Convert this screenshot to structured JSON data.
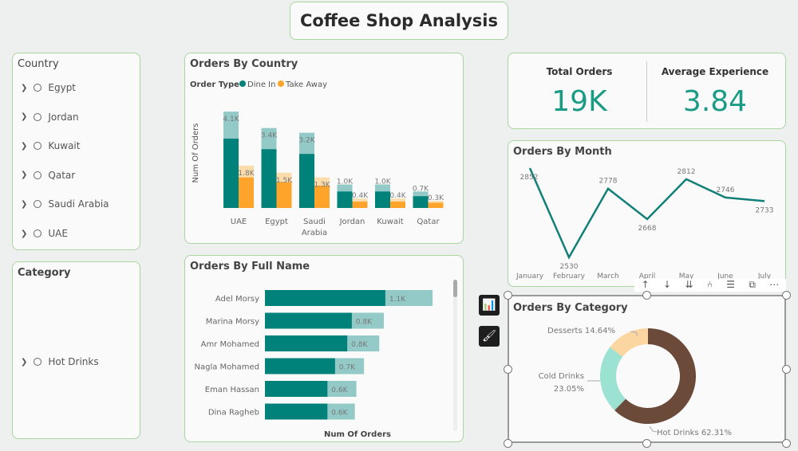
{
  "title": "Coffee Shop Analysis",
  "country_slicer": {
    "title": "Country",
    "items": [
      "Egypt",
      "Jordan",
      "Kuwait",
      "Qatar",
      "Saudi Arabia",
      "UAE"
    ]
  },
  "category_slicer": {
    "title": "Category",
    "items": [
      "Hot Drinks"
    ]
  },
  "kpis": [
    {
      "label": "Total Orders",
      "value": "19K"
    },
    {
      "label": "Average Experience",
      "value": "3.84"
    }
  ],
  "colors": {
    "teal": "#00827a",
    "teal_light": "#93c9c6",
    "orange": "#ffa42a",
    "orange_light": "#fcdcaa",
    "line": "#127f78",
    "hot": "#6b4a3a",
    "cold": "#9ce2d2",
    "desserts": "#fbd6a0",
    "kpi": "#1a9b84"
  },
  "chart_data": [
    {
      "type": "bar",
      "title": "Orders By Country",
      "legend_title": "Order Type",
      "legend_position": "top-left",
      "ylabel": "Num Of Orders",
      "categories": [
        "UAE",
        "Egypt",
        "Saudi Arabia",
        "Jordan",
        "Kuwait",
        "Qatar"
      ],
      "series": [
        {
          "name": "Dine In",
          "values": [
            4.1,
            3.4,
            3.2,
            1.0,
            1.0,
            0.7
          ],
          "highlighted": [
            2.95,
            2.5,
            2.3,
            0.7,
            0.7,
            0.5
          ],
          "labels": [
            "4.1K",
            "3.4K",
            "3.2K",
            "1.0K",
            "1.0K",
            "0.7K"
          ]
        },
        {
          "name": "Take Away",
          "values": [
            1.8,
            1.5,
            1.3,
            0.4,
            0.4,
            0.3
          ],
          "highlighted": [
            1.3,
            1.1,
            0.95,
            0.27,
            0.27,
            0.22
          ],
          "labels": [
            "1.8K",
            "1.5K",
            "1.3K",
            "0.4K",
            "0.4K",
            "0.3K"
          ]
        }
      ]
    },
    {
      "type": "bar",
      "orientation": "horizontal",
      "title": "Orders By Full Name",
      "xlabel": "Num Of Orders",
      "categories": [
        "Adel Morsy",
        "Marina Morsy",
        "Amr Mohamed",
        "Nagla Mohamed",
        "Eman Hassan",
        "Dina Ragheb"
      ],
      "values": [
        1.1,
        0.78,
        0.75,
        0.65,
        0.6,
        0.59
      ],
      "highlighted": [
        0.79,
        0.57,
        0.54,
        0.46,
        0.41,
        0.41
      ],
      "labels": [
        "1.1K",
        "0.8K",
        "0.8K",
        "0.7K",
        "0.6K",
        "0.6K"
      ]
    },
    {
      "type": "line",
      "title": "Orders By Month",
      "categories": [
        "January",
        "February",
        "March",
        "April",
        "May",
        "June",
        "July"
      ],
      "values": [
        2852,
        2530,
        2778,
        2668,
        2812,
        2746,
        2733
      ]
    },
    {
      "type": "pie",
      "donut": true,
      "title": "Orders By Category",
      "slices": [
        {
          "name": "Hot Drinks",
          "value": 62.31,
          "label": "Hot Drinks 62.31%"
        },
        {
          "name": "Cold Drinks",
          "value": 23.05,
          "label": "Cold Drinks",
          "pct": "23.05%"
        },
        {
          "name": "Desserts",
          "value": 14.64,
          "label": "Desserts 14.64%"
        }
      ]
    }
  ]
}
